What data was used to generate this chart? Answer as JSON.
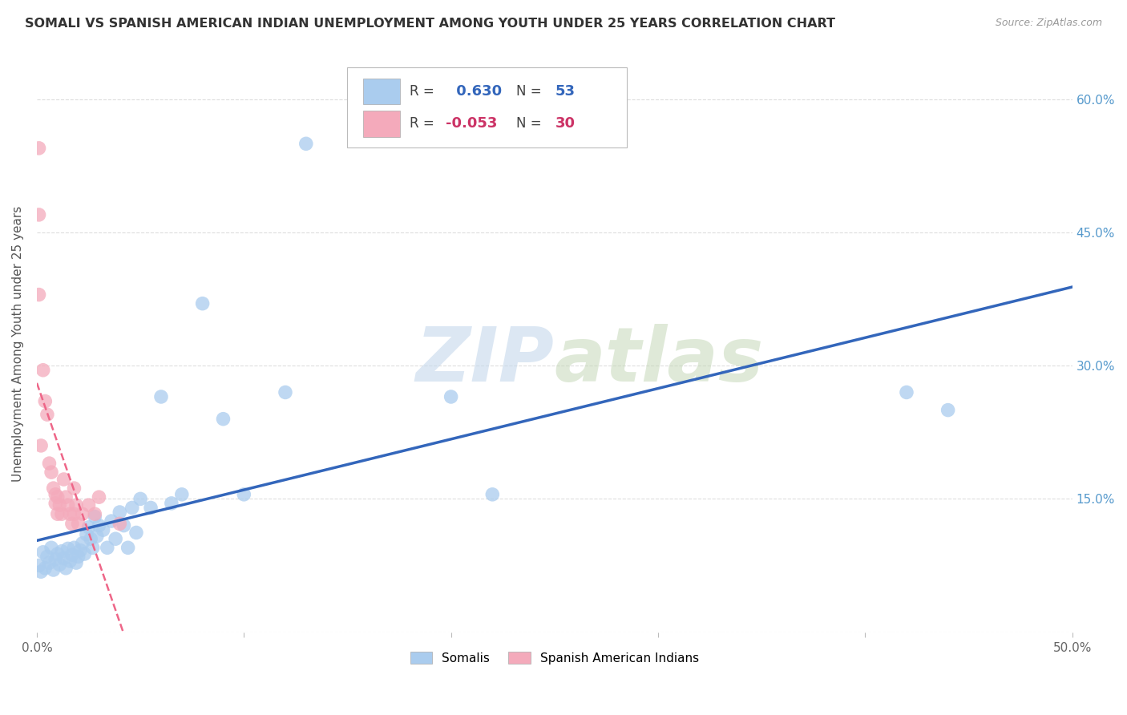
{
  "title": "SOMALI VS SPANISH AMERICAN INDIAN UNEMPLOYMENT AMONG YOUTH UNDER 25 YEARS CORRELATION CHART",
  "source": "Source: ZipAtlas.com",
  "ylabel": "Unemployment Among Youth under 25 years",
  "xlim": [
    0.0,
    0.5
  ],
  "ylim": [
    0.0,
    0.65
  ],
  "xticks": [
    0.0,
    0.1,
    0.2,
    0.3,
    0.4,
    0.5
  ],
  "yticks": [
    0.0,
    0.15,
    0.3,
    0.45,
    0.6
  ],
  "xticklabels": [
    "0.0%",
    "",
    "",
    "",
    "",
    "50.0%"
  ],
  "yticklabels_right": [
    "",
    "15.0%",
    "30.0%",
    "45.0%",
    "60.0%"
  ],
  "R_somali": 0.63,
  "N_somali": 53,
  "R_spanish": -0.053,
  "N_spanish": 30,
  "somali_color": "#aaccee",
  "spanish_color": "#f4aabb",
  "somali_line_color": "#3366bb",
  "spanish_line_color": "#ee6688",
  "watermark_zip": "ZIP",
  "watermark_atlas": "atlas",
  "somali_x": [
    0.001,
    0.002,
    0.003,
    0.004,
    0.005,
    0.006,
    0.007,
    0.008,
    0.009,
    0.01,
    0.011,
    0.012,
    0.013,
    0.014,
    0.015,
    0.016,
    0.017,
    0.018,
    0.019,
    0.02,
    0.021,
    0.022,
    0.023,
    0.024,
    0.025,
    0.026,
    0.027,
    0.028,
    0.029,
    0.03,
    0.032,
    0.034,
    0.036,
    0.038,
    0.04,
    0.042,
    0.044,
    0.046,
    0.048,
    0.05,
    0.055,
    0.06,
    0.065,
    0.07,
    0.08,
    0.09,
    0.1,
    0.12,
    0.13,
    0.2,
    0.22,
    0.42,
    0.44
  ],
  "somali_y": [
    0.075,
    0.068,
    0.09,
    0.072,
    0.085,
    0.078,
    0.095,
    0.07,
    0.082,
    0.088,
    0.076,
    0.091,
    0.083,
    0.072,
    0.094,
    0.08,
    0.087,
    0.095,
    0.078,
    0.085,
    0.092,
    0.1,
    0.088,
    0.11,
    0.118,
    0.105,
    0.095,
    0.13,
    0.108,
    0.12,
    0.115,
    0.095,
    0.125,
    0.105,
    0.135,
    0.12,
    0.095,
    0.14,
    0.112,
    0.15,
    0.14,
    0.265,
    0.145,
    0.155,
    0.37,
    0.24,
    0.155,
    0.27,
    0.55,
    0.265,
    0.155,
    0.27,
    0.25
  ],
  "spanish_x": [
    0.001,
    0.001,
    0.001,
    0.002,
    0.003,
    0.004,
    0.005,
    0.006,
    0.007,
    0.008,
    0.009,
    0.009,
    0.01,
    0.01,
    0.011,
    0.012,
    0.013,
    0.014,
    0.015,
    0.016,
    0.017,
    0.018,
    0.018,
    0.019,
    0.02,
    0.022,
    0.025,
    0.028,
    0.03,
    0.04
  ],
  "spanish_y": [
    0.545,
    0.47,
    0.38,
    0.21,
    0.295,
    0.26,
    0.245,
    0.19,
    0.18,
    0.162,
    0.145,
    0.155,
    0.133,
    0.152,
    0.143,
    0.133,
    0.172,
    0.152,
    0.143,
    0.133,
    0.122,
    0.133,
    0.162,
    0.143,
    0.122,
    0.133,
    0.143,
    0.133,
    0.152,
    0.122
  ],
  "legend_R_color_somali": "#3366bb",
  "legend_R_color_spanish": "#cc3366",
  "legend_N_color_somali": "#3366bb",
  "legend_N_color_spanish": "#cc3366",
  "background_color": "#ffffff",
  "grid_color": "#dddddd"
}
